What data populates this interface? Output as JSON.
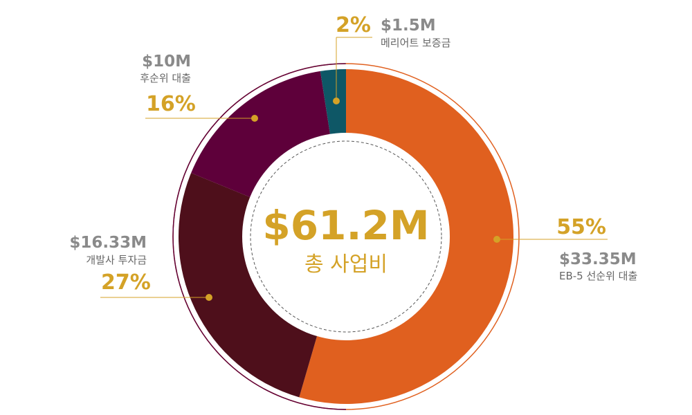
{
  "chart_data": {
    "type": "pie",
    "center": {
      "total": "$61.2M",
      "label": "총 사업비"
    },
    "slices": [
      {
        "name": "EB-5 선순위 대출",
        "amount": "$33.35M",
        "percent": "55%",
        "value": 33.35,
        "color": "#e0601f"
      },
      {
        "name": "개발사 투자금",
        "amount": "$16.33M",
        "percent": "27%",
        "value": 16.33,
        "color": "#4e0f1b"
      },
      {
        "name": "후순위 대출",
        "amount": "$10M",
        "percent": "16%",
        "value": 10,
        "color": "#5e003a"
      },
      {
        "name": "메리어트 보증금",
        "amount": "$1.5M",
        "percent": "2%",
        "value": 1.5,
        "color": "#0e5766"
      }
    ]
  },
  "colors": {
    "accent": "#d4a227",
    "amount_text": "#8a8a8a",
    "label_text": "#666666"
  }
}
